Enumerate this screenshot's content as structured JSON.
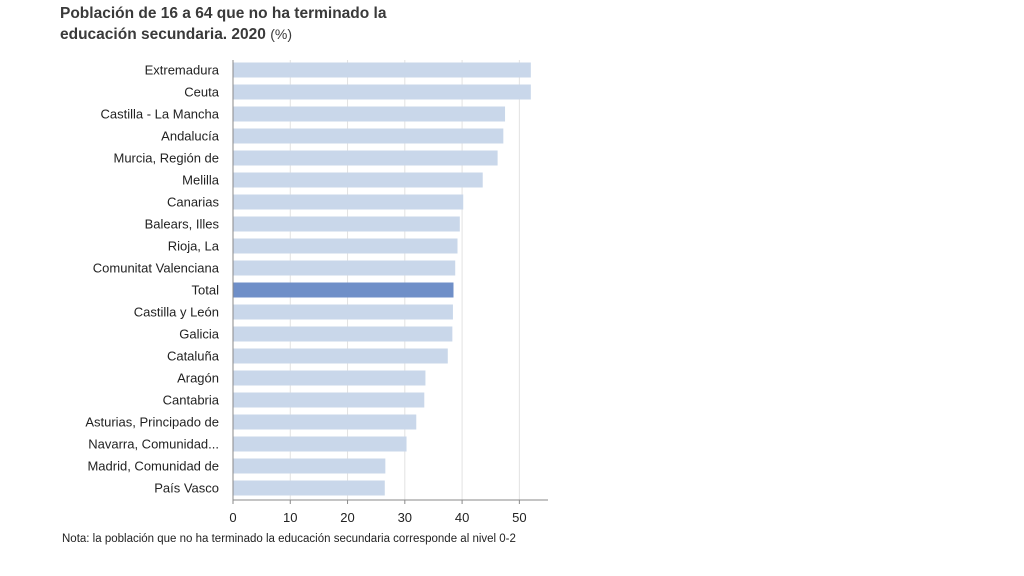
{
  "chart_data": {
    "type": "bar",
    "orientation": "horizontal",
    "title": "Población de 16 a 64 que no ha terminado la educación secundaria. 2020",
    "title_line1": "Población de 16 a 64 que no ha terminado la",
    "title_line2": "educación secundaria. 2020",
    "unit": "(%)",
    "categories": [
      "Extremadura",
      "Ceuta",
      "Castilla - La Mancha",
      "Andalucía",
      "Murcia, Región de",
      "Melilla",
      "Canarias",
      "Balears, Illes",
      "Rioja, La",
      "Comunitat Valenciana",
      "Total",
      "Castilla y León",
      "Galicia",
      "Cataluña",
      "Aragón",
      "Cantabria",
      "Asturias, Principado de",
      "Navarra, Comunidad...",
      "Madrid, Comunidad de",
      "País Vasco"
    ],
    "values": [
      52.0,
      52.0,
      47.5,
      47.2,
      46.2,
      43.6,
      40.2,
      39.6,
      39.2,
      38.8,
      38.5,
      38.4,
      38.3,
      37.5,
      33.6,
      33.4,
      32.0,
      30.3,
      26.6,
      26.5
    ],
    "highlight_category": "Total",
    "xlim": [
      0,
      55
    ],
    "xticks": [
      "0",
      "10",
      "20",
      "30",
      "40",
      "50"
    ],
    "xlabel": "",
    "ylabel": "",
    "grid": "vertical",
    "colors": {
      "bar": "#c9d7ea",
      "bar_highlight": "#6f8fc8",
      "grid": "#e2e2e2",
      "axis": "#8a8a8a"
    }
  },
  "note": "Nota: la población que no ha terminado la educación secundaria corresponde al nivel 0-2"
}
